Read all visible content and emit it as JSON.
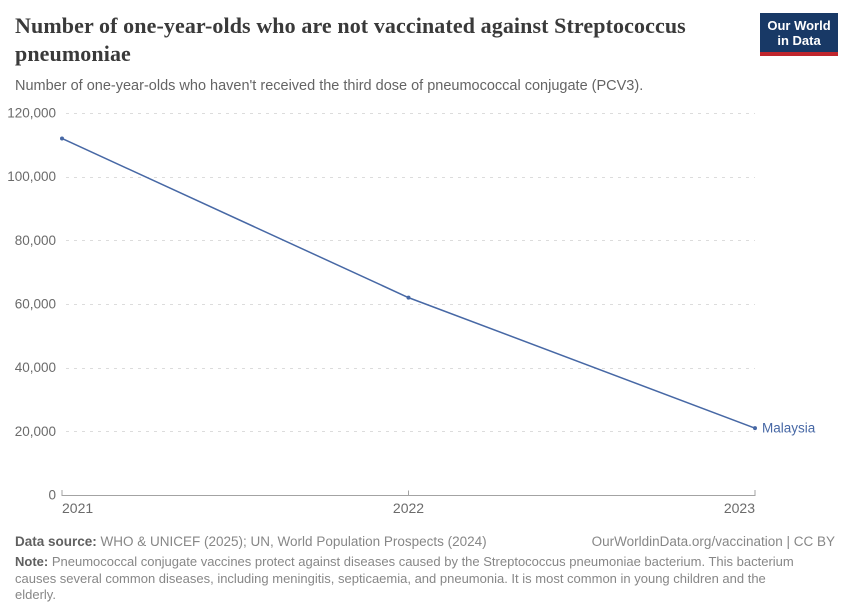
{
  "header": {
    "title": "Number of one-year-olds who are not vaccinated against Streptococcus pneumoniae",
    "subtitle": "Number of one-year-olds who haven't received the third dose of pneumococcal conjugate (PCV3).",
    "logo": {
      "line1": "Our World",
      "line2": "in Data"
    }
  },
  "chart_data": {
    "type": "line",
    "title": "Number of one-year-olds who are not vaccinated against Streptococcus pneumoniae",
    "subtitle": "Number of one-year-olds who haven't received the third dose of pneumococcal conjugate (PCV3).",
    "x": [
      2021,
      2022,
      2023
    ],
    "xtick_labels": [
      "2021",
      "2022",
      "2023"
    ],
    "series": [
      {
        "name": "Malaysia",
        "values": [
          112000,
          62000,
          21000
        ],
        "color": "#4768a5"
      }
    ],
    "ylim": [
      0,
      120000
    ],
    "yticks": [
      0,
      20000,
      40000,
      60000,
      80000,
      100000,
      120000
    ],
    "ytick_labels": [
      "0",
      "20,000",
      "40,000",
      "60,000",
      "80,000",
      "100,000",
      "120,000"
    ],
    "xlabel": "",
    "ylabel": "",
    "grid": "horizontal-dashed",
    "legend": "end-of-line-label",
    "entity_label": "Malaysia"
  },
  "footer": {
    "source_label": "Data source:",
    "source_text": " WHO & UNICEF (2025); UN, World Population Prospects (2024)",
    "citation": "OurWorldinData.org/vaccination | CC BY",
    "note_label": "Note:",
    "note_text": " Pneumococcal conjugate vaccines protect against diseases caused by the Streptococcus pneumoniae bacterium. This bacterium causes several common diseases, including meningitis, septicaemia, and pneumonia. It is most common in young children and the elderly."
  },
  "colors": {
    "accent": "#4768a5",
    "grid": "#dcdcdc",
    "axis": "#a3a3a3",
    "tick_text": "#6b6b6b",
    "title_text": "#3a3a3a",
    "logo_bg": "#183966",
    "logo_red": "#c0262d"
  }
}
